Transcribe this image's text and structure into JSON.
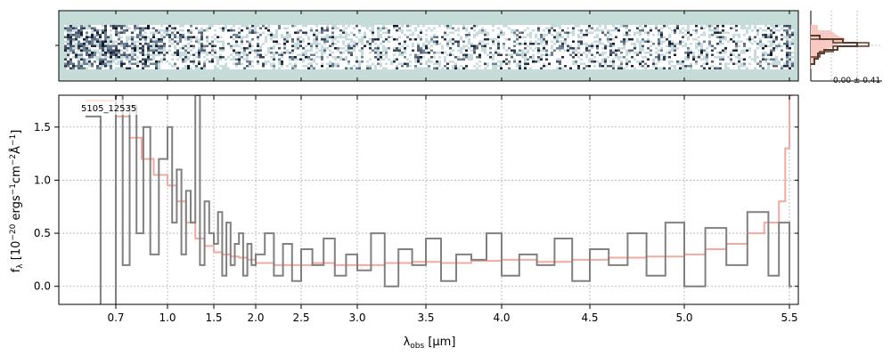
{
  "colors": {
    "background": "#c5dcd9",
    "spectrum": "#808080",
    "model": "#f4a9a0",
    "model_band": "#f8c8c2",
    "histogram": "#5a3a2a",
    "grid": "#b0b0b0"
  },
  "chart_data": [
    {
      "type": "heatmap",
      "panel": "2d-spectrum",
      "colormap": "bone-like (white to dark navy/black on teal background)",
      "description_values": "noisy 2D trace, darker at short wavelength end and near the right edge",
      "x_ticks_shared_with": "1d-spectrum"
    },
    {
      "type": "line",
      "panel": "1d-spectrum",
      "object_label": "5105_12535",
      "xlabel_main": "λ",
      "xlabel_sub": "obs",
      "xlabel_unit": " [μm]",
      "ylabel": "f_λ [10^-20 ergs^-1cm^-2Å^-1]",
      "ylabel_parts": {
        "f": "f",
        "sub": "λ",
        "open": " [10",
        "exp1": "−20",
        "mid1": " ergs",
        "exp2": "−1",
        "mid2": "cm",
        "exp3": "−2",
        "mid3": "Å",
        "exp4": "−1",
        "close": "]"
      },
      "x_scale": "sqrt-like (custom)",
      "xlim": [
        0.55,
        5.55
      ],
      "ylim": [
        -0.17,
        1.8
      ],
      "x_tick_labels": [
        "0.7",
        "1.0",
        "1.5",
        "2.0",
        "2.5",
        "3.0",
        "3.5",
        "4.0",
        "4.5",
        "5.0",
        "5.5"
      ],
      "x_tick_values": [
        0.7,
        1.0,
        1.5,
        2.0,
        2.5,
        3.0,
        3.5,
        4.0,
        4.5,
        5.0,
        5.5
      ],
      "y_tick_labels": [
        "0.0",
        "0.5",
        "1.0",
        "1.5"
      ],
      "y_tick_values": [
        0.0,
        0.5,
        1.0,
        1.5
      ],
      "grid": true,
      "series": [
        {
          "role": "data",
          "style": "steps",
          "x": [
            0.62,
            0.66,
            0.7,
            0.74,
            0.78,
            0.82,
            0.86,
            0.9,
            0.95,
            1.0,
            1.05,
            1.1,
            1.15,
            1.2,
            1.25,
            1.3,
            1.35,
            1.4,
            1.45,
            1.5,
            1.55,
            1.6,
            1.65,
            1.7,
            1.75,
            1.8,
            1.85,
            1.9,
            1.95,
            2.0,
            2.1,
            2.2,
            2.3,
            2.4,
            2.5,
            2.6,
            2.7,
            2.8,
            2.9,
            3.0,
            3.1,
            3.2,
            3.3,
            3.4,
            3.5,
            3.6,
            3.7,
            3.8,
            3.9,
            4.0,
            4.1,
            4.2,
            4.3,
            4.4,
            4.5,
            4.6,
            4.7,
            4.8,
            4.9,
            5.0,
            5.1,
            5.2,
            5.3,
            5.4,
            5.45,
            5.5
          ],
          "y": [
            1.6,
            -0.2,
            1.8,
            0.2,
            1.7,
            0.5,
            1.5,
            0.3,
            1.2,
            1.5,
            0.6,
            1.1,
            0.3,
            0.9,
            0.6,
            1.8,
            0.2,
            0.8,
            0.5,
            0.4,
            0.7,
            0.1,
            0.6,
            0.2,
            0.4,
            0.5,
            0.1,
            0.4,
            0.2,
            0.3,
            0.5,
            0.1,
            0.4,
            0.05,
            0.35,
            0.2,
            0.45,
            0.1,
            0.3,
            0.15,
            0.5,
            0.0,
            0.35,
            0.2,
            0.45,
            0.05,
            0.3,
            0.25,
            0.5,
            0.1,
            0.3,
            0.2,
            0.45,
            0.05,
            0.35,
            0.2,
            0.5,
            0.1,
            0.6,
            0.0,
            0.55,
            0.2,
            0.7,
            0.1,
            0.6,
            0.0
          ]
        },
        {
          "role": "model",
          "style": "steps",
          "x": [
            0.62,
            0.7,
            0.78,
            0.85,
            0.92,
            1.0,
            1.1,
            1.2,
            1.3,
            1.4,
            1.5,
            1.6,
            1.7,
            1.8,
            1.9,
            2.0,
            2.2,
            2.4,
            2.6,
            2.8,
            3.0,
            3.2,
            3.4,
            3.6,
            3.8,
            4.0,
            4.2,
            4.4,
            4.6,
            4.8,
            5.0,
            5.1,
            5.2,
            5.3,
            5.38,
            5.45,
            5.48,
            5.5
          ],
          "y": [
            1.75,
            1.6,
            1.4,
            1.2,
            1.05,
            0.95,
            0.8,
            0.6,
            0.45,
            0.38,
            0.32,
            0.3,
            0.28,
            0.27,
            0.25,
            0.22,
            0.2,
            0.2,
            0.22,
            0.2,
            0.2,
            0.22,
            0.23,
            0.22,
            0.24,
            0.25,
            0.23,
            0.25,
            0.27,
            0.28,
            0.3,
            0.35,
            0.4,
            0.5,
            0.6,
            0.8,
            1.3,
            1.8
          ]
        }
      ]
    },
    {
      "type": "histogram",
      "panel": "profile",
      "annotation": "0.00 ± 0.41"
    }
  ]
}
